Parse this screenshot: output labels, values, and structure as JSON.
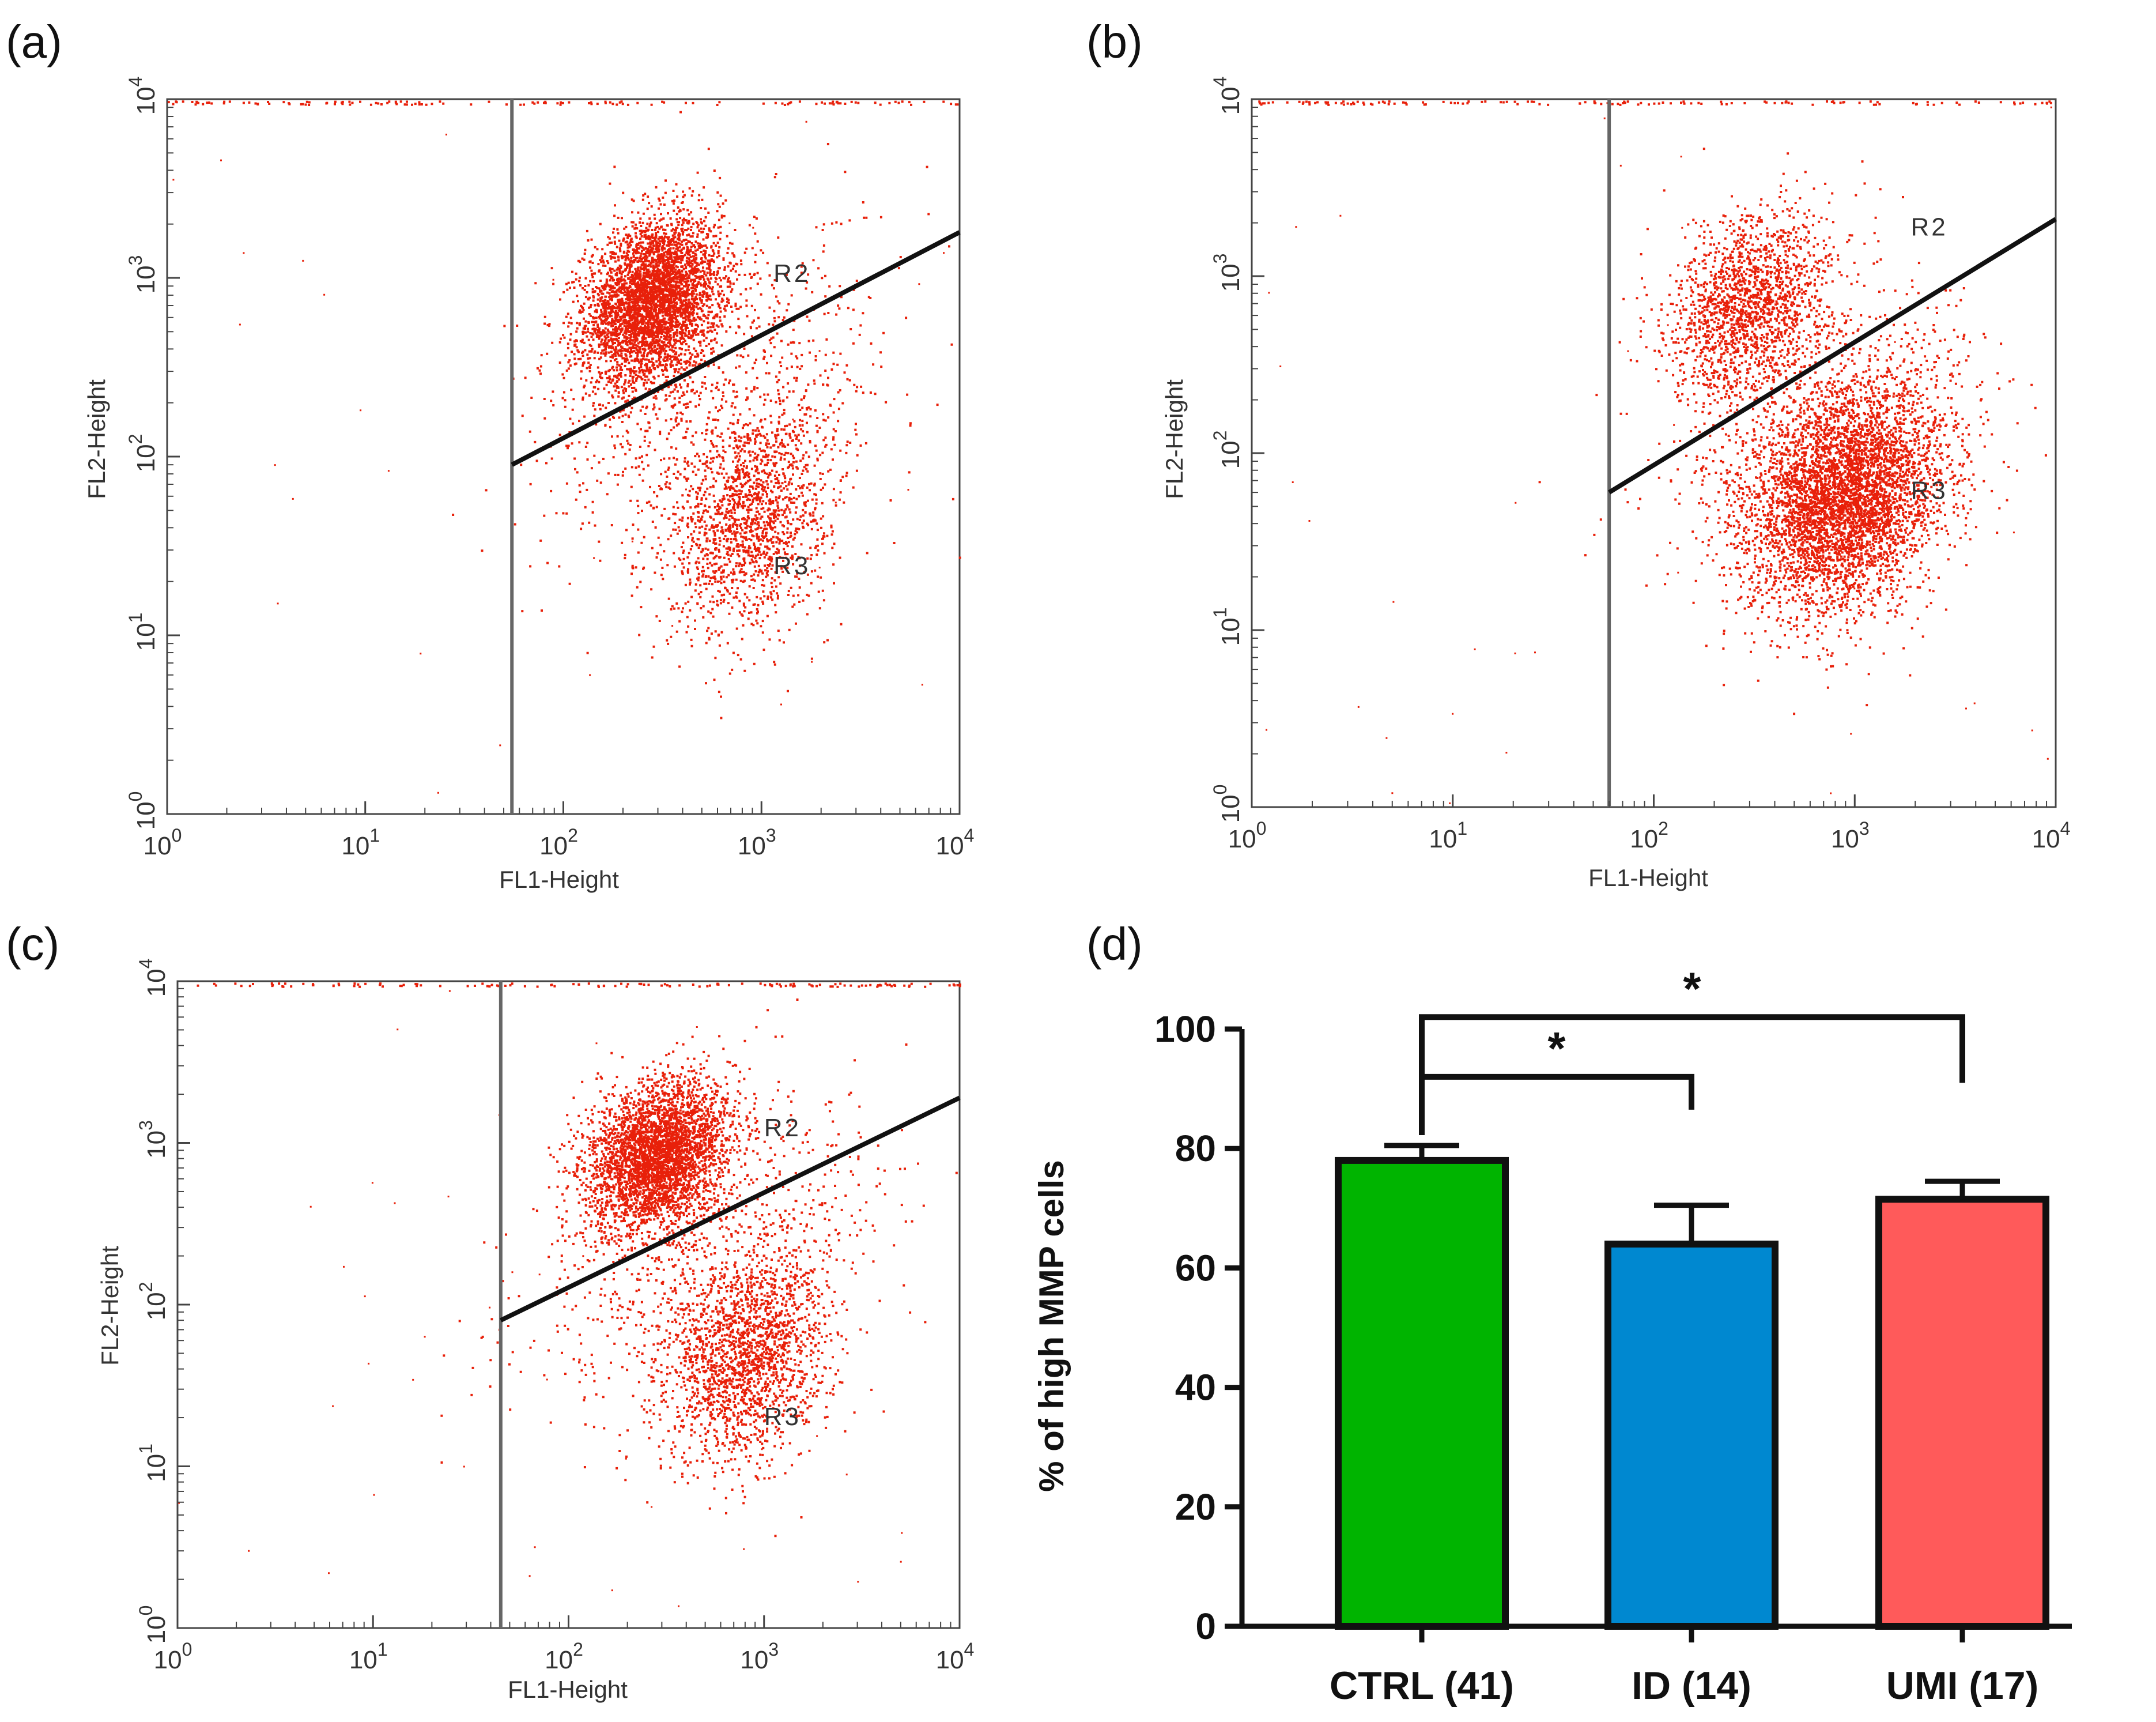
{
  "chart_data": [
    {
      "id": "a",
      "panel_label": "(a)",
      "type": "scatter",
      "title": "",
      "xlabel": "FL1-Height",
      "ylabel": "FL2-Height",
      "xscale": "log",
      "yscale": "log",
      "xlim": [
        1,
        10000
      ],
      "ylim": [
        1,
        10000
      ],
      "x_ticks": [
        {
          "base": "10",
          "exp": "0"
        },
        {
          "base": "10",
          "exp": "1"
        },
        {
          "base": "10",
          "exp": "2"
        },
        {
          "base": "10",
          "exp": "3"
        },
        {
          "base": "10",
          "exp": "4"
        }
      ],
      "y_ticks": [
        {
          "base": "10",
          "exp": "0"
        },
        {
          "base": "10",
          "exp": "1"
        },
        {
          "base": "10",
          "exp": "2"
        },
        {
          "base": "10",
          "exp": "3"
        },
        {
          "base": "10",
          "exp": "4"
        }
      ],
      "point_color": "#e8200a",
      "gate_x": 55,
      "gate_line": {
        "x1": 55,
        "y1": 90,
        "x2": 10000,
        "y2": 1800
      },
      "populations": [
        {
          "name": "R2-cluster",
          "cx": 280,
          "cy": 750,
          "sx": 0.17,
          "sy": 0.22,
          "n": 4200
        },
        {
          "name": "R3-cluster",
          "cx": 850,
          "cy": 45,
          "sx": 0.2,
          "sy": 0.3,
          "n": 1500
        },
        {
          "name": "diffuse",
          "cx": 600,
          "cy": 200,
          "sx": 0.45,
          "sy": 0.45,
          "n": 900
        }
      ],
      "region_labels": [
        {
          "text": "R2",
          "x": 1150,
          "y": 950
        },
        {
          "text": "R3",
          "x": 1150,
          "y": 22
        }
      ]
    },
    {
      "id": "b",
      "panel_label": "(b)",
      "type": "scatter",
      "title": "",
      "xlabel": "FL1-Height",
      "ylabel": "FL2-Height",
      "xscale": "log",
      "yscale": "log",
      "xlim": [
        1,
        10000
      ],
      "ylim": [
        1,
        10000
      ],
      "x_ticks": [
        {
          "base": "10",
          "exp": "0"
        },
        {
          "base": "10",
          "exp": "1"
        },
        {
          "base": "10",
          "exp": "2"
        },
        {
          "base": "10",
          "exp": "3"
        },
        {
          "base": "10",
          "exp": "4"
        }
      ],
      "y_ticks": [
        {
          "base": "10",
          "exp": "0"
        },
        {
          "base": "10",
          "exp": "1"
        },
        {
          "base": "10",
          "exp": "2"
        },
        {
          "base": "10",
          "exp": "3"
        },
        {
          "base": "10",
          "exp": "4"
        }
      ],
      "point_color": "#e8200a",
      "gate_x": 60,
      "gate_line": {
        "x1": 60,
        "y1": 60,
        "x2": 10000,
        "y2": 2100
      },
      "populations": [
        {
          "name": "R2-cluster",
          "cx": 300,
          "cy": 700,
          "sx": 0.2,
          "sy": 0.25,
          "n": 1700
        },
        {
          "name": "R3-cluster",
          "cx": 900,
          "cy": 55,
          "sx": 0.24,
          "sy": 0.3,
          "n": 4600
        },
        {
          "name": "diffuse",
          "cx": 700,
          "cy": 150,
          "sx": 0.4,
          "sy": 0.4,
          "n": 900
        }
      ],
      "region_labels": [
        {
          "text": "R2",
          "x": 1900,
          "y": 1700
        },
        {
          "text": "R3",
          "x": 1900,
          "y": 55
        }
      ]
    },
    {
      "id": "c",
      "panel_label": "(c)",
      "type": "scatter",
      "title": "",
      "xlabel": "FL1-Height",
      "ylabel": "FL2-Height",
      "xscale": "log",
      "yscale": "log",
      "xlim": [
        1,
        10000
      ],
      "ylim": [
        1,
        10000
      ],
      "x_ticks": [
        {
          "base": "10",
          "exp": "0"
        },
        {
          "base": "10",
          "exp": "1"
        },
        {
          "base": "10",
          "exp": "2"
        },
        {
          "base": "10",
          "exp": "3"
        },
        {
          "base": "10",
          "exp": "4"
        }
      ],
      "y_ticks": [
        {
          "base": "10",
          "exp": "0"
        },
        {
          "base": "10",
          "exp": "1"
        },
        {
          "base": "10",
          "exp": "2"
        },
        {
          "base": "10",
          "exp": "3"
        },
        {
          "base": "10",
          "exp": "4"
        }
      ],
      "point_color": "#e8200a",
      "gate_x": 45,
      "gate_line": {
        "x1": 45,
        "y1": 80,
        "x2": 10000,
        "y2": 1900
      },
      "populations": [
        {
          "name": "R2-cluster",
          "cx": 280,
          "cy": 850,
          "sx": 0.18,
          "sy": 0.22,
          "n": 3600
        },
        {
          "name": "R3-cluster",
          "cx": 800,
          "cy": 45,
          "sx": 0.2,
          "sy": 0.32,
          "n": 1800
        },
        {
          "name": "diffuse",
          "cx": 500,
          "cy": 200,
          "sx": 0.45,
          "sy": 0.45,
          "n": 900
        }
      ],
      "region_labels": [
        {
          "text": "R2",
          "x": 1000,
          "y": 1100
        },
        {
          "text": "R3",
          "x": 1000,
          "y": 18
        }
      ]
    },
    {
      "id": "d",
      "panel_label": "(d)",
      "type": "bar",
      "title": "",
      "xlabel": "",
      "ylabel": "% of high MMP cells",
      "ylim": [
        0,
        100
      ],
      "y_ticks": [
        "0",
        "20",
        "40",
        "60",
        "80",
        "100"
      ],
      "categories": [
        "CTRL (41)",
        "ID (14)",
        "UMI (17)"
      ],
      "values": [
        78,
        64,
        71.5
      ],
      "errors": [
        2.5,
        6.5,
        3
      ],
      "colors": [
        "#00b400",
        "#0088d0",
        "#ff5a5a"
      ],
      "significance": [
        {
          "from": 0,
          "to": 1,
          "label": "*",
          "level": 92
        },
        {
          "from": 0,
          "to": 2,
          "label": "*",
          "level": 102
        }
      ]
    }
  ]
}
